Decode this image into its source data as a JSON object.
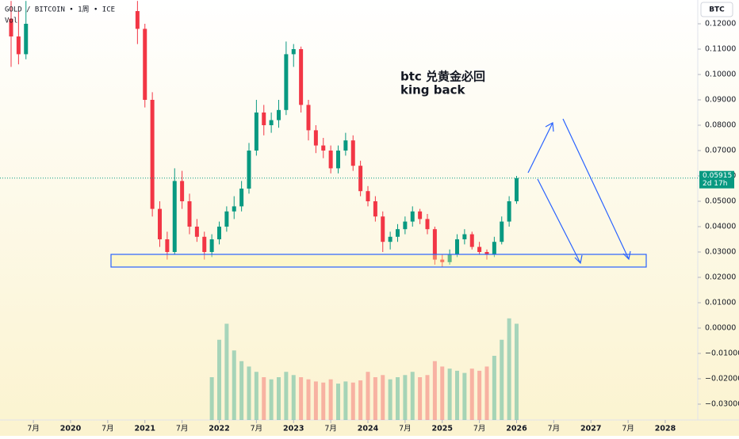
{
  "chart_data": {
    "type": "candlestick",
    "title": "GOLD / BITCOIN • 1周 • ICE",
    "indicator": "Vol",
    "symbol": "BTC",
    "countdown": "2d 17h",
    "annotations": [
      "btc 兑黄金必回",
      "king back"
    ],
    "up_color": "#089981",
    "down_color": "#f23645",
    "x": [
      2019.2,
      2019.3,
      2019.4,
      2020.9,
      2021.0,
      2021.1,
      2021.2,
      2021.3,
      2021.4,
      2021.5,
      2021.6,
      2021.7,
      2021.8,
      2021.9,
      2022.0,
      2022.1,
      2022.2,
      2022.3,
      2022.4,
      2022.5,
      2022.6,
      2022.7,
      2022.8,
      2022.9,
      2023.0,
      2023.1,
      2023.2,
      2023.3,
      2023.4,
      2023.5,
      2023.6,
      2023.7,
      2023.8,
      2023.9,
      2024.0,
      2024.1,
      2024.2,
      2024.3,
      2024.4,
      2024.5,
      2024.6,
      2024.7,
      2024.8,
      2024.9,
      2025.0,
      2025.1,
      2025.2,
      2025.3,
      2025.4,
      2025.5,
      2025.6,
      2025.7,
      2025.8,
      2025.9,
      2026.0
    ],
    "open": [
      0.122,
      0.115,
      0.108,
      0.125,
      0.118,
      0.09,
      0.047,
      0.035,
      0.03,
      0.058,
      0.05,
      0.04,
      0.036,
      0.03,
      0.035,
      0.04,
      0.046,
      0.048,
      0.055,
      0.07,
      0.085,
      0.08,
      0.082,
      0.086,
      0.108,
      0.11,
      0.088,
      0.078,
      0.072,
      0.07,
      0.063,
      0.07,
      0.074,
      0.064,
      0.054,
      0.05,
      0.044,
      0.034,
      0.036,
      0.039,
      0.042,
      0.046,
      0.043,
      0.039,
      0.027,
      0.026,
      0.029,
      0.035,
      0.037,
      0.032,
      0.03,
      0.029,
      0.034,
      0.042,
      0.05
    ],
    "high": [
      0.129,
      0.125,
      0.129,
      0.129,
      0.12,
      0.093,
      0.05,
      0.038,
      0.063,
      0.062,
      0.053,
      0.043,
      0.038,
      0.037,
      0.042,
      0.048,
      0.052,
      0.058,
      0.073,
      0.09,
      0.088,
      0.085,
      0.09,
      0.113,
      0.112,
      0.111,
      0.09,
      0.08,
      0.075,
      0.072,
      0.072,
      0.077,
      0.076,
      0.066,
      0.056,
      0.052,
      0.046,
      0.038,
      0.041,
      0.044,
      0.048,
      0.047,
      0.045,
      0.04,
      0.029,
      0.031,
      0.037,
      0.039,
      0.038,
      0.034,
      0.031,
      0.036,
      0.044,
      0.052,
      0.06
    ],
    "low": [
      0.103,
      0.104,
      0.106,
      0.112,
      0.087,
      0.044,
      0.032,
      0.027,
      0.029,
      0.047,
      0.037,
      0.034,
      0.027,
      0.028,
      0.033,
      0.038,
      0.043,
      0.046,
      0.053,
      0.068,
      0.076,
      0.077,
      0.079,
      0.084,
      0.103,
      0.085,
      0.074,
      0.069,
      0.067,
      0.061,
      0.061,
      0.068,
      0.062,
      0.052,
      0.048,
      0.042,
      0.03,
      0.031,
      0.034,
      0.037,
      0.04,
      0.041,
      0.037,
      0.025,
      0.024,
      0.025,
      0.028,
      0.033,
      0.031,
      0.029,
      0.027,
      0.028,
      0.033,
      0.04,
      0.049
    ],
    "close": [
      0.115,
      0.108,
      0.12,
      0.118,
      0.09,
      0.047,
      0.035,
      0.03,
      0.058,
      0.05,
      0.04,
      0.036,
      0.03,
      0.035,
      0.04,
      0.046,
      0.048,
      0.055,
      0.07,
      0.085,
      0.08,
      0.082,
      0.086,
      0.108,
      0.11,
      0.088,
      0.078,
      0.072,
      0.07,
      0.063,
      0.07,
      0.074,
      0.064,
      0.054,
      0.05,
      0.044,
      0.034,
      0.036,
      0.039,
      0.042,
      0.046,
      0.043,
      0.039,
      0.027,
      0.026,
      0.029,
      0.035,
      0.037,
      0.032,
      0.03,
      0.029,
      0.034,
      0.042,
      0.05,
      0.05915
    ],
    "volume": [
      null,
      null,
      null,
      null,
      null,
      null,
      null,
      null,
      null,
      null,
      null,
      null,
      null,
      40,
      75,
      90,
      65,
      55,
      50,
      45,
      40,
      38,
      40,
      45,
      42,
      40,
      38,
      36,
      35,
      38,
      34,
      36,
      35,
      37,
      45,
      40,
      42,
      38,
      40,
      42,
      45,
      40,
      42,
      55,
      50,
      48,
      46,
      44,
      48,
      46,
      50,
      60,
      75,
      95,
      90
    ],
    "xlim": [
      2019.0507,
      2028.4373
    ],
    "xticks": [
      {
        "value": 2019.5,
        "label": "7月"
      },
      2020,
      {
        "value": 2020.5,
        "label": "7月"
      },
      2021,
      {
        "value": 2021.5,
        "label": "7月"
      },
      2022,
      {
        "value": 2022.5,
        "label": "7月"
      },
      2023,
      {
        "value": 2023.5,
        "label": "7月"
      },
      2024,
      {
        "value": 2024.5,
        "label": "7月"
      },
      2025,
      {
        "value": 2025.5,
        "label": "7月"
      },
      2026,
      {
        "value": 2026.5,
        "label": "7月"
      },
      2027,
      {
        "value": 2027.5,
        "label": "7月"
      },
      2028
    ],
    "ylim": [
      -0.03625,
      0.129375
    ],
    "yticks": [
      {
        "value": 0.12,
        "label": "0.12000"
      },
      {
        "value": 0.11,
        "label": "0.11000"
      },
      {
        "value": 0.1,
        "label": "0.10000"
      },
      {
        "value": 0.09,
        "label": "0.09000"
      },
      {
        "value": 0.08,
        "label": "0.08000"
      },
      {
        "value": 0.07,
        "label": "0.07000"
      },
      {
        "value": 0.06,
        "label": "0.06000"
      },
      {
        "value": 0.05,
        "label": "0.05000"
      },
      {
        "value": 0.04,
        "label": "0.04000"
      },
      {
        "value": 0.03,
        "label": "0.03000"
      },
      {
        "value": 0.02,
        "label": "0.02000"
      },
      {
        "value": 0.01,
        "label": "0.01000"
      },
      {
        "value": 0,
        "label": "0.00000"
      },
      {
        "value": -0.01,
        "label": "−0.01000"
      },
      {
        "value": -0.02,
        "label": "−0.02000"
      },
      {
        "value": -0.03,
        "label": "−0.03000"
      }
    ]
  }
}
